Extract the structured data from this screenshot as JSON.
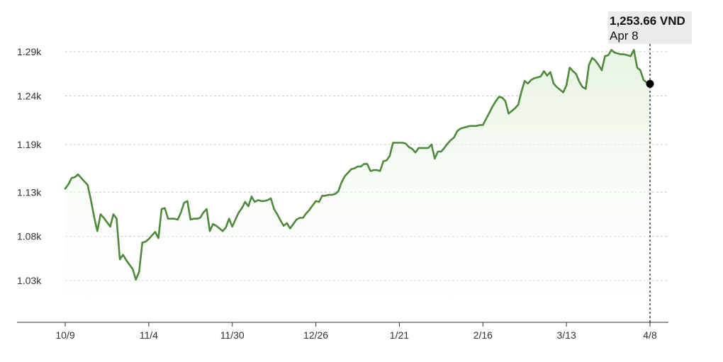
{
  "chart_data": {
    "type": "area",
    "title": "",
    "xlabel": "",
    "ylabel": "",
    "x_tick_labels": [
      "10/9",
      "11/4",
      "11/30",
      "12/26",
      "1/21",
      "2/16",
      "3/13",
      "4/8"
    ],
    "y_tick_labels": [
      "1.03k",
      "1.08k",
      "1.13k",
      "1.19k",
      "1.24k",
      "1.29k"
    ],
    "y_tick_values": [
      1031,
      1081,
      1131,
      1185,
      1240,
      1290
    ],
    "ylim": [
      1000,
      1300
    ],
    "grid": true,
    "colors": {
      "line": "#4f8a3c",
      "fill_top": "#e9f5e4",
      "marker": "#000000",
      "tooltip_bg": "#ebebeb"
    },
    "series": [
      {
        "x": [
          0,
          1,
          2,
          3,
          4,
          5,
          6,
          7,
          8,
          9,
          10,
          11,
          12,
          13,
          14,
          15,
          16,
          17,
          18,
          19,
          20,
          21,
          22,
          23,
          24,
          25,
          26,
          27,
          28,
          29,
          30,
          31,
          32,
          33,
          34,
          35,
          36,
          37,
          38,
          39,
          40,
          41,
          42,
          43,
          44,
          45,
          46,
          47,
          48,
          49,
          50,
          51,
          52,
          53,
          54,
          55,
          56,
          57,
          58,
          59,
          60,
          61,
          62,
          63,
          64,
          65,
          66,
          67,
          68,
          69,
          70,
          71,
          72,
          73,
          74,
          75,
          76,
          77,
          78,
          79,
          80,
          81,
          82,
          83,
          84,
          85,
          86,
          87,
          88,
          89,
          90,
          91,
          92,
          93,
          94,
          95,
          96,
          97,
          98,
          99,
          100,
          101,
          102,
          103,
          104,
          105,
          106,
          107,
          108,
          109,
          110,
          111,
          112,
          113,
          114,
          115,
          116,
          117,
          118,
          119,
          120,
          121,
          122,
          123,
          124,
          125,
          126,
          127,
          128,
          129,
          130,
          131,
          132,
          133,
          134,
          135,
          136,
          137,
          138,
          139,
          140,
          141,
          142,
          143,
          144,
          145,
          146,
          147,
          148,
          149,
          150,
          151,
          152,
          153,
          154,
          155,
          156,
          157,
          158,
          159,
          160,
          161,
          162,
          163,
          164,
          165,
          166,
          167,
          168,
          169,
          170,
          171,
          172,
          173,
          174,
          175,
          176,
          177,
          178,
          179,
          180,
          181,
          182
        ],
        "values": [
          1135,
          1140,
          1147,
          1148,
          1151,
          1147,
          1143,
          1139,
          1122,
          1103,
          1087,
          1106,
          1102,
          1097,
          1092,
          1106,
          1101,
          1055,
          1060,
          1054,
          1049,
          1044,
          1032,
          1041,
          1074,
          1075,
          1078,
          1082,
          1086,
          1079,
          1112,
          1113,
          1101,
          1101,
          1101,
          1100,
          1108,
          1119,
          1121,
          1100,
          1101,
          1101,
          1102,
          1108,
          1112,
          1087,
          1095,
          1093,
          1090,
          1087,
          1091,
          1101,
          1092,
          1100,
          1108,
          1113,
          1120,
          1115,
          1126,
          1120,
          1122,
          1121,
          1121,
          1122,
          1124,
          1112,
          1106,
          1099,
          1093,
          1096,
          1090,
          1095,
          1100,
          1102,
          1102,
          1107,
          1111,
          1116,
          1121,
          1120,
          1127,
          1127,
          1128,
          1128,
          1129,
          1132,
          1142,
          1149,
          1153,
          1157,
          1158,
          1160,
          1160,
          1163,
          1163,
          1155,
          1156,
          1156,
          1155,
          1166,
          1167,
          1172,
          1187,
          1187,
          1187,
          1187,
          1186,
          1182,
          1180,
          1176,
          1181,
          1181,
          1181,
          1181,
          1185,
          1169,
          1177,
          1177,
          1181,
          1186,
          1190,
          1193,
          1200,
          1203,
          1204,
          1205,
          1206,
          1206,
          1206,
          1207,
          1207,
          1214,
          1221,
          1228,
          1234,
          1239,
          1238,
          1234,
          1220,
          1223,
          1226,
          1230,
          1245,
          1257,
          1254,
          1258,
          1260,
          1261,
          1262,
          1268,
          1263,
          1267,
          1254,
          1250,
          1247,
          1244,
          1252,
          1272,
          1268,
          1265,
          1256,
          1250,
          1248,
          1275,
          1283,
          1280,
          1275,
          1269,
          1285,
          1286,
          1292,
          1289,
          1288,
          1287,
          1287,
          1286,
          1285,
          1292,
          1272,
          1269,
          1258,
          1255,
          1253.66
        ]
      }
    ],
    "tooltip": {
      "value": "1,253.66 VND",
      "date": "Apr 8"
    }
  }
}
